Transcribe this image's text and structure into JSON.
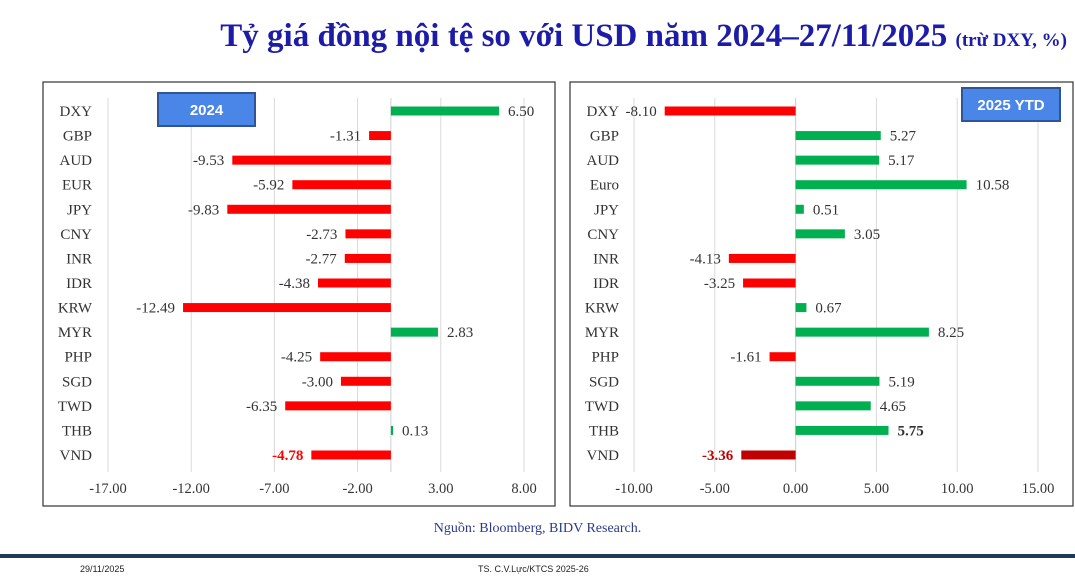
{
  "title": {
    "main": "Tỷ giá đồng nội tệ so với USD năm 2024–27/11/2025",
    "suffix": "(trừ DXY, %)"
  },
  "colors": {
    "positive": "#00b050",
    "negative": "#ff0000",
    "highlight_negative": "#c00000",
    "title": "#1c1ca8",
    "legend_box": "#4a86e8"
  },
  "chart_data": [
    {
      "type": "bar",
      "orientation": "horizontal",
      "legend_label": "2024",
      "categories": [
        "DXY",
        "GBP",
        "AUD",
        "EUR",
        "JPY",
        "CNY",
        "INR",
        "IDR",
        "KRW",
        "MYR",
        "PHP",
        "SGD",
        "TWD",
        "THB",
        "VND"
      ],
      "values": [
        6.5,
        -1.31,
        -9.53,
        -5.92,
        -9.83,
        -2.73,
        -2.77,
        -4.38,
        -12.49,
        2.83,
        -4.25,
        -3.0,
        -6.35,
        0.13,
        -4.78
      ],
      "labels": [
        "6.50",
        "-1.31",
        "-9.53",
        "-5.92",
        "-9.83",
        "-2.73",
        "-2.77",
        "-4.38",
        "-12.49",
        "2.83",
        "-4.25",
        "-3.00",
        "-6.35",
        "0.13",
        "-4.78"
      ],
      "xlim": [
        -17,
        8
      ],
      "xticks": [
        "-17.00",
        "-12.00",
        "-7.00",
        "-2.00",
        "3.00",
        "8.00"
      ],
      "xtick_values": [
        -17,
        -12,
        -7,
        -2,
        3,
        8
      ],
      "grid": true,
      "highlight": "VND"
    },
    {
      "type": "bar",
      "orientation": "horizontal",
      "legend_label": "2025 YTD",
      "categories": [
        "DXY",
        "GBP",
        "AUD",
        "Euro",
        "JPY",
        "CNY",
        "INR",
        "IDR",
        "KRW",
        "MYR",
        "PHP",
        "SGD",
        "TWD",
        "THB",
        "VND"
      ],
      "values": [
        -8.1,
        5.27,
        5.17,
        10.58,
        0.51,
        3.05,
        -4.13,
        -3.25,
        0.67,
        8.25,
        -1.61,
        5.19,
        4.65,
        5.75,
        -3.36
      ],
      "labels": [
        "-8.10",
        "5.27",
        "5.17",
        "10.58",
        "0.51",
        "3.05",
        "-4.13",
        "-3.25",
        "0.67",
        "8.25",
        "-1.61",
        "5.19",
        "4.65",
        "5.75",
        "-3.36"
      ],
      "xlim": [
        -10,
        15
      ],
      "xticks": [
        "-10.00",
        "-5.00",
        "0.00",
        "5.00",
        "10.00",
        "15.00"
      ],
      "xtick_values": [
        -10,
        -5,
        0,
        5,
        10,
        15
      ],
      "grid": true,
      "highlight": "VND",
      "bold_label": "THB"
    }
  ],
  "source": "Nguồn: Bloomberg, BIDV Research.",
  "footer": {
    "date": "29/11/2025",
    "author": "TS. C.V.Lực/KTCS 2025-26"
  }
}
